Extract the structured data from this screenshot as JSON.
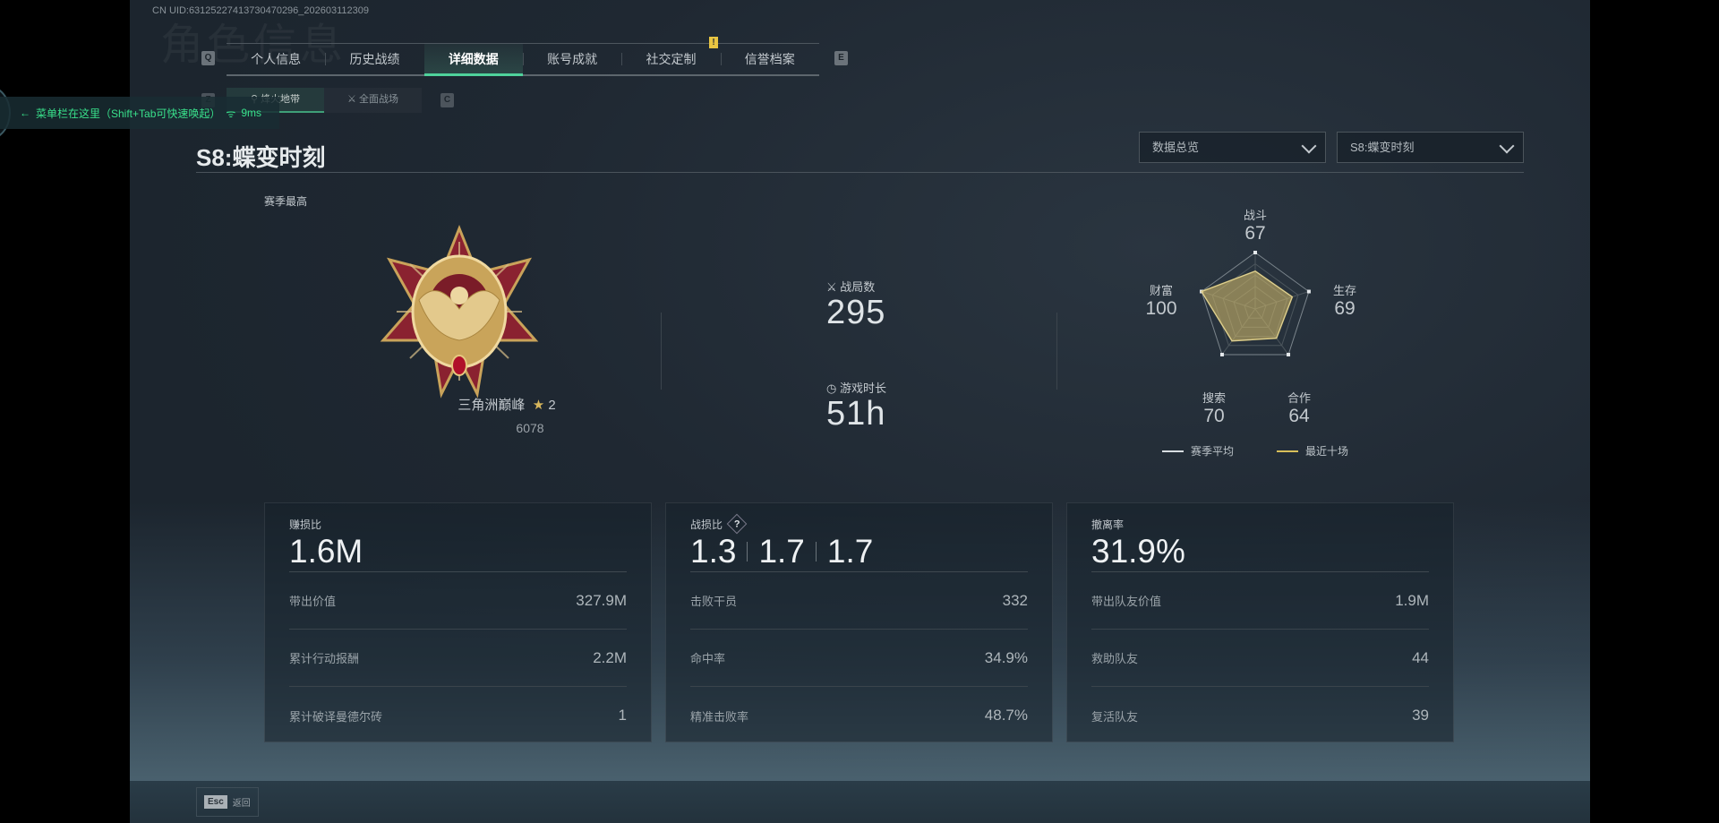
{
  "uid": "CN UID:63125227413730470296_202603112309",
  "page_watermark": "角色信息",
  "tabs": {
    "prev_key": "Q",
    "next_key": "E",
    "items": [
      "个人信息",
      "历史战绩",
      "详细数据",
      "账号成就",
      "社交定制",
      "信誉档案"
    ],
    "active": "详细数据",
    "alert_badge": "!"
  },
  "subtabs": {
    "items": [
      "烽火地带",
      "全面战场"
    ],
    "active": "烽火地带",
    "prev_key": "Z",
    "next_key": "C"
  },
  "overlay": {
    "text": "菜单栏在这里（Shift+Tab可快速唤起）",
    "ping": "9ms"
  },
  "season_title": "S8:蝶变时刻",
  "dropdowns": {
    "view": "数据总览",
    "season": "S8:蝶变时刻"
  },
  "rank": {
    "section_label": "赛季最高",
    "name": "三角洲巅峰",
    "stars": "2",
    "score": "6078"
  },
  "summary": {
    "matches_label": "战局数",
    "matches": "295",
    "playtime_label": "游戏时长",
    "playtime": "51h"
  },
  "radar": {
    "axes": [
      {
        "label": "战斗",
        "value": 67
      },
      {
        "label": "生存",
        "value": 69
      },
      {
        "label": "合作",
        "value": 64
      },
      {
        "label": "搜索",
        "value": 70
      },
      {
        "label": "财富",
        "value": 100
      }
    ],
    "max": 100,
    "legend": [
      {
        "label": "赛季平均",
        "color": "#d8dde1"
      },
      {
        "label": "最近十场",
        "color": "#d8bf5a"
      }
    ]
  },
  "cards": [
    {
      "label": "赚损比",
      "values": [
        "1.6M"
      ],
      "rows": [
        {
          "label": "带出价值",
          "value": "327.9M"
        },
        {
          "label": "累计行动报酬",
          "value": "2.2M"
        },
        {
          "label": "累计破译曼德尔砖",
          "value": "1"
        }
      ]
    },
    {
      "label": "战损比",
      "help": "?",
      "values": [
        "1.3",
        "1.7",
        "1.7"
      ],
      "rows": [
        {
          "label": "击败干员",
          "value": "332"
        },
        {
          "label": "命中率",
          "value": "34.9%"
        },
        {
          "label": "精准击败率",
          "value": "48.7%"
        }
      ]
    },
    {
      "label": "撤离率",
      "values": [
        "31.9%"
      ],
      "rows": [
        {
          "label": "带出队友价值",
          "value": "1.9M"
        },
        {
          "label": "救助队友",
          "value": "44"
        },
        {
          "label": "复活队友",
          "value": "39"
        }
      ]
    }
  ],
  "footer": {
    "esc_key": "Esc",
    "back_label": "返回"
  }
}
